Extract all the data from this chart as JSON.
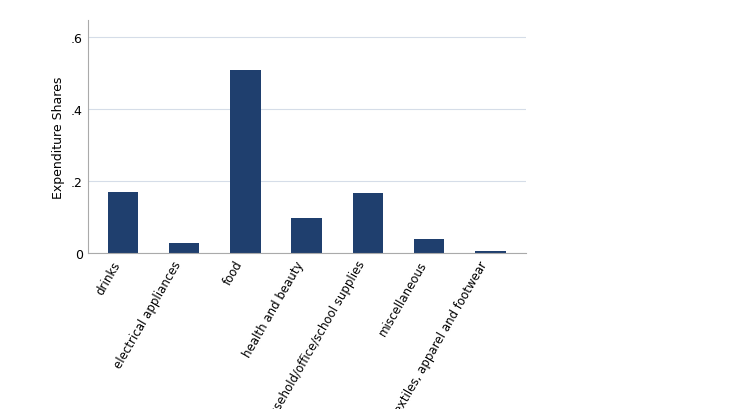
{
  "categories": [
    "drinks",
    "electrical appliances",
    "food",
    "health and beauty",
    "household/office/school supplies",
    "miscellaneous",
    "textiles, apparel and footwear"
  ],
  "values": [
    0.17,
    0.028,
    0.51,
    0.098,
    0.168,
    0.04,
    0.007
  ],
  "bar_color": "#1f3f6e",
  "ylabel": "Expenditure Shares",
  "ylim": [
    0,
    0.65
  ],
  "yticks": [
    0,
    0.2,
    0.4,
    0.6
  ],
  "ytick_labels": [
    "0",
    ".2",
    ".4",
    ".6"
  ],
  "background_color": "#ffffff",
  "grid_color": "#d5dde8",
  "label_rotation": 60,
  "label_fontsize": 8.5,
  "ylabel_fontsize": 9,
  "ytick_fontsize": 9
}
